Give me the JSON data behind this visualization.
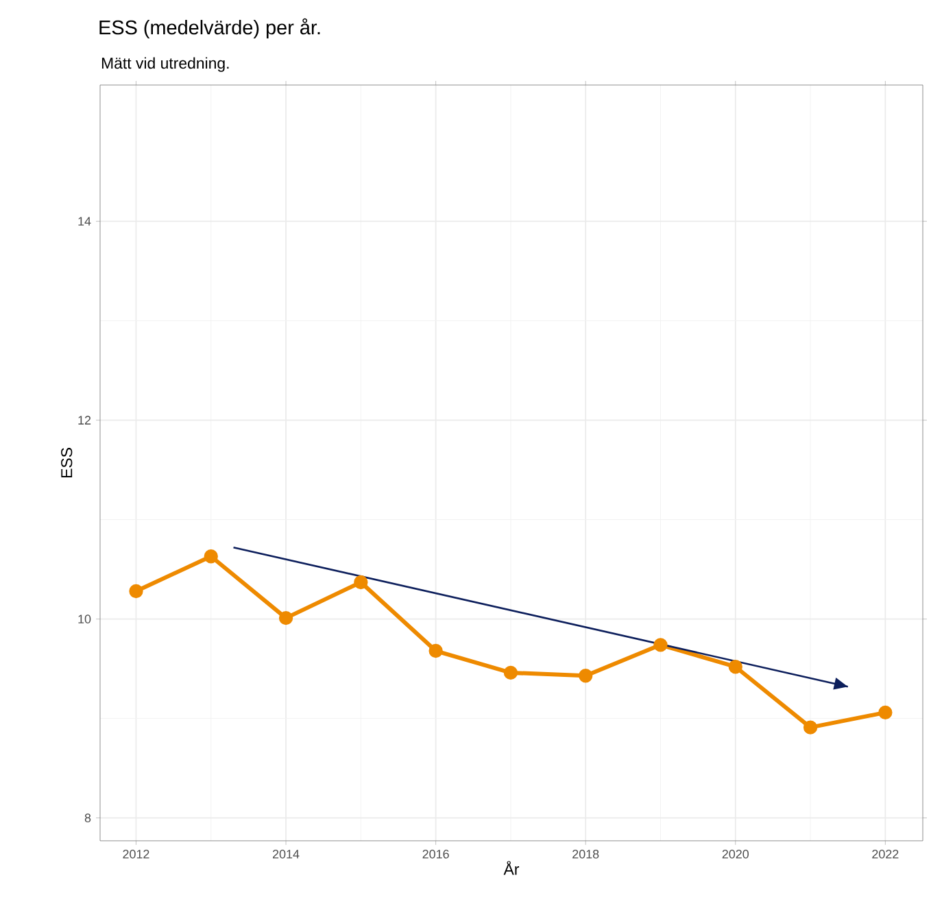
{
  "chart_data": {
    "type": "line",
    "title": "ESS (medelvärde) per år.",
    "subtitle": "Mätt vid utredning.",
    "xlabel": "År",
    "ylabel": "ESS",
    "x": [
      2012,
      2013,
      2014,
      2015,
      2016,
      2017,
      2018,
      2019,
      2020,
      2021,
      2022
    ],
    "series": [
      {
        "color": "#ee8a00",
        "values": [
          10.28,
          10.63,
          10.01,
          10.37,
          9.68,
          9.46,
          9.43,
          9.74,
          9.52,
          8.91,
          9.06
        ],
        "marker": "circle"
      },
      {
        "type": "line",
        "color": "#0d1f5c",
        "x": [
          2013.3,
          2021.5
        ],
        "values": [
          10.72,
          9.32
        ],
        "marker": "none"
      }
    ],
    "xlim": [
      2011.52,
      2022.5
    ],
    "ylim": [
      7.77,
      15.37
    ],
    "xticks": [
      2012,
      2014,
      2016,
      2018,
      2020,
      2022
    ],
    "yticks": [
      8,
      10,
      12,
      14
    ],
    "grid": true
  }
}
